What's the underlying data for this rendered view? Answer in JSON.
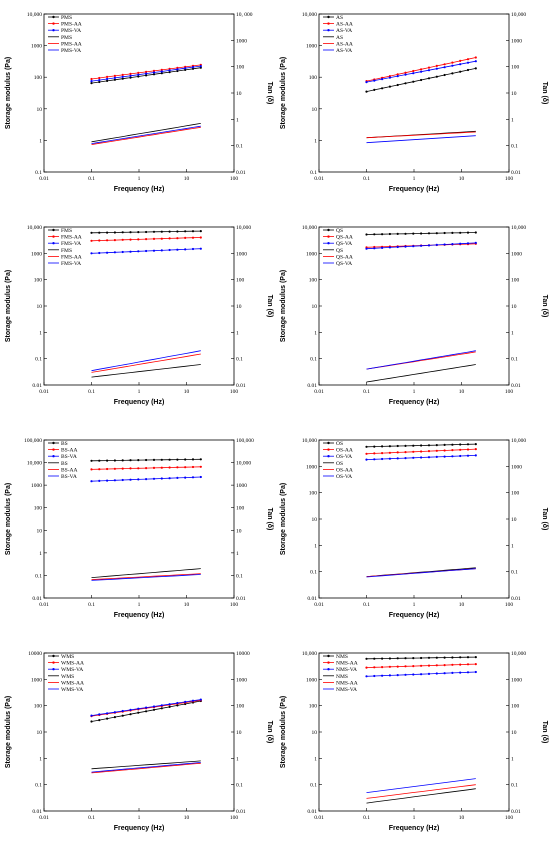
{
  "chart_data": [
    {
      "type": "line",
      "panel": "PMS",
      "xlabel": "Frequency (Hz)",
      "ylabel": "Storage modulus (Pa)",
      "y2label": "Tan (δ)",
      "xlim": [
        0.01,
        100
      ],
      "ylim": [
        0.1,
        10000
      ],
      "y2lim": [
        0.01,
        10000
      ],
      "log_scale": true,
      "legend": "top-left",
      "x_ticks": [
        "0.01",
        "0.1",
        "1",
        "10",
        "100"
      ],
      "y_ticks": [
        "0.1",
        "1",
        "10",
        "100",
        "1000",
        "10,000"
      ],
      "y2_ticks": [
        "0.01",
        "0.1",
        "1",
        "10",
        "100",
        "1000",
        "10, 000"
      ],
      "series": [
        {
          "name": "PMS",
          "axis": "left",
          "color": "#000000",
          "x": [
            0.1,
            20
          ],
          "values": [
            65,
            200
          ]
        },
        {
          "name": "PMS-AA",
          "axis": "left",
          "color": "#ff0000",
          "x": [
            0.1,
            20
          ],
          "values": [
            88,
            245
          ]
        },
        {
          "name": "PMS-VA",
          "axis": "left",
          "color": "#0000ff",
          "x": [
            0.1,
            20
          ],
          "values": [
            75,
            225
          ]
        },
        {
          "name": "PMS",
          "axis": "right",
          "color": "#000000",
          "x": [
            0.1,
            20
          ],
          "values": [
            0.14,
            0.7
          ]
        },
        {
          "name": "PMS-AA",
          "axis": "right",
          "color": "#ff0000",
          "x": [
            0.1,
            20
          ],
          "values": [
            0.11,
            0.5
          ]
        },
        {
          "name": "PMS-VA",
          "axis": "right",
          "color": "#0000ff",
          "x": [
            0.1,
            20
          ],
          "values": [
            0.12,
            0.55
          ]
        }
      ]
    },
    {
      "type": "line",
      "panel": "AS",
      "xlabel": "Frequency (Hz)",
      "ylabel": "Storage modulus (Pa)",
      "y2label": "Tan (δ)",
      "xlim": [
        0.01,
        100
      ],
      "ylim": [
        0.1,
        10000
      ],
      "y2lim": [
        0.01,
        10000
      ],
      "log_scale": true,
      "legend": "top-left",
      "x_ticks": [
        "0.01",
        "0.1",
        "1",
        "10",
        "100"
      ],
      "y_ticks": [
        "0.1",
        "1",
        "10",
        "100",
        "1000",
        "10,000"
      ],
      "y2_ticks": [
        "0.01",
        "0.1",
        "1",
        "10",
        "100",
        "1000",
        "10,000"
      ],
      "series": [
        {
          "name": "AS",
          "axis": "left",
          "color": "#000000",
          "x": [
            0.1,
            20
          ],
          "values": [
            35,
            190
          ]
        },
        {
          "name": "AS-AA",
          "axis": "left",
          "color": "#ff0000",
          "x": [
            0.1,
            20
          ],
          "values": [
            75,
            420
          ]
        },
        {
          "name": "AS-VA",
          "axis": "left",
          "color": "#0000ff",
          "x": [
            0.1,
            20
          ],
          "values": [
            70,
            320
          ]
        },
        {
          "name": "AS",
          "axis": "right",
          "color": "#000000",
          "x": [
            0.1,
            20
          ],
          "values": [
            0.2,
            0.35
          ]
        },
        {
          "name": "AS-AA",
          "axis": "right",
          "color": "#ff0000",
          "x": [
            0.1,
            20
          ],
          "values": [
            0.2,
            0.33
          ]
        },
        {
          "name": "AS-VA",
          "axis": "right",
          "color": "#0000ff",
          "x": [
            0.1,
            20
          ],
          "values": [
            0.13,
            0.24
          ]
        }
      ]
    },
    {
      "type": "line",
      "panel": "FMS",
      "xlabel": "Frequency (Hz)",
      "ylabel": "Storage modulus (Pa)",
      "y2label": "Tan (δ)",
      "xlim": [
        0.01,
        100
      ],
      "ylim": [
        0.01,
        10000
      ],
      "y2lim": [
        0.01,
        10000
      ],
      "log_scale": true,
      "legend": "top-left",
      "x_ticks": [
        "0.01",
        "0.1",
        "1",
        "10",
        "100"
      ],
      "y_ticks": [
        "0.01",
        "0.1",
        "1",
        "10",
        "100",
        "1000",
        "10,000"
      ],
      "y2_ticks": [
        "0.01",
        "0.1",
        "1",
        "10",
        "100",
        "1000",
        "10,000"
      ],
      "series": [
        {
          "name": "FMS",
          "axis": "left",
          "color": "#000000",
          "x": [
            0.1,
            20
          ],
          "values": [
            6000,
            7000
          ]
        },
        {
          "name": "FMS-AA",
          "axis": "left",
          "color": "#ff0000",
          "x": [
            0.1,
            20
          ],
          "values": [
            3000,
            4000
          ]
        },
        {
          "name": "FMS-VA",
          "axis": "left",
          "color": "#0000ff",
          "x": [
            0.1,
            20
          ],
          "values": [
            1000,
            1500
          ]
        },
        {
          "name": "FMS",
          "axis": "right",
          "color": "#000000",
          "x": [
            0.1,
            20
          ],
          "values": [
            0.02,
            0.06
          ]
        },
        {
          "name": "FMS-AA",
          "axis": "right",
          "color": "#ff0000",
          "x": [
            0.1,
            20
          ],
          "values": [
            0.03,
            0.15
          ]
        },
        {
          "name": "FMS-VA",
          "axis": "right",
          "color": "#0000ff",
          "x": [
            0.1,
            20
          ],
          "values": [
            0.035,
            0.2
          ]
        }
      ]
    },
    {
      "type": "line",
      "panel": "QS",
      "xlabel": "Frequency (Hz)",
      "ylabel": "Storage modulus (Pa)",
      "y2label": "Tan (δ)",
      "xlim": [
        0.01,
        100
      ],
      "ylim": [
        0.01,
        10000
      ],
      "y2lim": [
        0.01,
        10000
      ],
      "log_scale": true,
      "legend": "top-left",
      "x_ticks": [
        "0.01",
        "0.1",
        "1",
        "10",
        "100"
      ],
      "y_ticks": [
        "0.01",
        "0.1",
        "1",
        "10",
        "100",
        "1000",
        "10,000"
      ],
      "y2_ticks": [
        "0.01",
        "0.1",
        "1",
        "10",
        "100",
        "1000",
        "10,000"
      ],
      "series": [
        {
          "name": "QS",
          "axis": "left",
          "color": "#000000",
          "x": [
            0.1,
            20
          ],
          "values": [
            5200,
            6200
          ]
        },
        {
          "name": "QS-AA",
          "axis": "left",
          "color": "#ff0000",
          "x": [
            0.1,
            20
          ],
          "values": [
            1700,
            2300
          ]
        },
        {
          "name": "QS-VA",
          "axis": "left",
          "color": "#0000ff",
          "x": [
            0.1,
            20
          ],
          "values": [
            1500,
            2500
          ]
        },
        {
          "name": "QS",
          "axis": "right",
          "color": "#000000",
          "x": [
            0.1,
            20
          ],
          "values": [
            0.013,
            0.06
          ]
        },
        {
          "name": "QS-AA",
          "axis": "right",
          "color": "#ff0000",
          "x": [
            0.1,
            20
          ],
          "values": [
            0.04,
            0.18
          ]
        },
        {
          "name": "QS-VA",
          "axis": "right",
          "color": "#0000ff",
          "x": [
            0.1,
            20
          ],
          "values": [
            0.04,
            0.2
          ]
        }
      ]
    },
    {
      "type": "line",
      "panel": "BS",
      "xlabel": "Frequency (Hz)",
      "ylabel": "Storage modulus (Pa)",
      "y2label": "Tan (δ)",
      "xlim": [
        0.01,
        100
      ],
      "ylim": [
        0.01,
        100000
      ],
      "y2lim": [
        0.01,
        100000
      ],
      "log_scale": true,
      "legend": "top-left",
      "x_ticks": [
        "0.01",
        "0.1",
        "1",
        "10",
        "100"
      ],
      "y_ticks": [
        "0.01",
        "0.1",
        "1",
        "10",
        "100",
        "1000",
        "10,000",
        "100,000"
      ],
      "y2_ticks": [
        "0.01",
        "0.1",
        "1",
        "10",
        "100",
        "1000",
        "10,000",
        "100,000"
      ],
      "series": [
        {
          "name": "BS",
          "axis": "left",
          "color": "#000000",
          "x": [
            0.1,
            20
          ],
          "values": [
            12000,
            14000
          ]
        },
        {
          "name": "BS-AA",
          "axis": "left",
          "color": "#ff0000",
          "x": [
            0.1,
            20
          ],
          "values": [
            5000,
            6500
          ]
        },
        {
          "name": "BS-VA",
          "axis": "left",
          "color": "#0000ff",
          "x": [
            0.1,
            20
          ],
          "values": [
            1500,
            2300
          ]
        },
        {
          "name": "BS",
          "axis": "right",
          "color": "#000000",
          "x": [
            0.1,
            20
          ],
          "values": [
            0.08,
            0.2
          ]
        },
        {
          "name": "BS-AA",
          "axis": "right",
          "color": "#ff0000",
          "x": [
            0.1,
            20
          ],
          "values": [
            0.065,
            0.12
          ]
        },
        {
          "name": "BS-VA",
          "axis": "right",
          "color": "#0000ff",
          "x": [
            0.1,
            20
          ],
          "values": [
            0.06,
            0.11
          ]
        }
      ]
    },
    {
      "type": "line",
      "panel": "OS",
      "xlabel": "Frequency (Hz)",
      "ylabel": "Storage modulus (Pa)",
      "y2label": "Tan (δ)",
      "xlim": [
        0.01,
        100
      ],
      "ylim": [
        0.01,
        10000
      ],
      "y2lim": [
        0.01,
        10000
      ],
      "log_scale": true,
      "legend": "top-left",
      "x_ticks": [
        "0.01",
        "0.1",
        "1",
        "10",
        "100"
      ],
      "y_ticks": [
        "0.01",
        "0.1",
        "1",
        "10",
        "100",
        "1000",
        "10,000"
      ],
      "y2_ticks": [
        "0.01",
        "0.1",
        "1",
        "10",
        "100",
        "1000",
        "10,000"
      ],
      "series": [
        {
          "name": "OS",
          "axis": "left",
          "color": "#000000",
          "x": [
            0.1,
            20
          ],
          "values": [
            5500,
            7000
          ]
        },
        {
          "name": "OS-AA",
          "axis": "left",
          "color": "#ff0000",
          "x": [
            0.1,
            20
          ],
          "values": [
            3000,
            4500
          ]
        },
        {
          "name": "OS-VA",
          "axis": "left",
          "color": "#0000ff",
          "x": [
            0.1,
            20
          ],
          "values": [
            1800,
            2600
          ]
        },
        {
          "name": "OS",
          "axis": "right",
          "color": "#000000",
          "x": [
            0.1,
            20
          ],
          "values": [
            0.065,
            0.14
          ]
        },
        {
          "name": "OS-AA",
          "axis": "right",
          "color": "#ff0000",
          "x": [
            0.1,
            20
          ],
          "values": [
            0.065,
            0.13
          ]
        },
        {
          "name": "OS-VA",
          "axis": "right",
          "color": "#0000ff",
          "x": [
            0.1,
            20
          ],
          "values": [
            0.063,
            0.13
          ]
        }
      ]
    },
    {
      "type": "line",
      "panel": "WMS",
      "xlabel": "Frequency (Hz)",
      "ylabel": "Storage modulus (Pa)",
      "y2label": "Tan (δ)",
      "xlim": [
        0.01,
        100
      ],
      "ylim": [
        0.01,
        10000
      ],
      "y2lim": [
        0.01,
        10000
      ],
      "log_scale": true,
      "legend": "top-left",
      "x_ticks": [
        "0.01",
        "0.1",
        "1",
        "10",
        "100"
      ],
      "y_ticks": [
        "0.01",
        "0.1",
        "1",
        "10",
        "100",
        "1000",
        "10000"
      ],
      "y2_ticks": [
        "0.01",
        "0.1",
        "1",
        "10",
        "100",
        "1000",
        "10000"
      ],
      "series": [
        {
          "name": "WMS",
          "axis": "left",
          "color": "#000000",
          "x": [
            0.1,
            20
          ],
          "values": [
            25,
            150
          ]
        },
        {
          "name": "WMS-AA",
          "axis": "left",
          "color": "#ff0000",
          "x": [
            0.1,
            20
          ],
          "values": [
            40,
            160
          ]
        },
        {
          "name": "WMS-VA",
          "axis": "left",
          "color": "#0000ff",
          "x": [
            0.1,
            20
          ],
          "values": [
            42,
            170
          ]
        },
        {
          "name": "WMS",
          "axis": "right",
          "color": "#000000",
          "x": [
            0.1,
            20
          ],
          "values": [
            0.4,
            0.8
          ]
        },
        {
          "name": "WMS-AA",
          "axis": "right",
          "color": "#ff0000",
          "x": [
            0.1,
            20
          ],
          "values": [
            0.28,
            0.65
          ]
        },
        {
          "name": "WMS-VA",
          "axis": "right",
          "color": "#0000ff",
          "x": [
            0.1,
            20
          ],
          "values": [
            0.3,
            0.7
          ]
        }
      ]
    },
    {
      "type": "line",
      "panel": "NMS",
      "xlabel": "Frequency (Hz)",
      "ylabel": "Storage modulus (Pa)",
      "y2label": "Tan (δ)",
      "xlim": [
        0.01,
        100
      ],
      "ylim": [
        0.01,
        10000
      ],
      "y2lim": [
        0.01,
        10000
      ],
      "log_scale": true,
      "legend": "top-left",
      "x_ticks": [
        "0.01",
        "0.1",
        "1",
        "10",
        "100"
      ],
      "y_ticks": [
        "0.01",
        "0.1",
        "1",
        "10",
        "100",
        "1000",
        "10,000"
      ],
      "y2_ticks": [
        "0.01",
        "0.1",
        "1",
        "10",
        "100",
        "1000",
        "10,000"
      ],
      "series": [
        {
          "name": "NMS",
          "axis": "left",
          "color": "#000000",
          "x": [
            0.1,
            20
          ],
          "values": [
            6000,
            7000
          ]
        },
        {
          "name": "NMS-AA",
          "axis": "left",
          "color": "#ff0000",
          "x": [
            0.1,
            20
          ],
          "values": [
            2800,
            3800
          ]
        },
        {
          "name": "NMS-VA",
          "axis": "left",
          "color": "#0000ff",
          "x": [
            0.1,
            20
          ],
          "values": [
            1300,
            1900
          ]
        },
        {
          "name": "NMS",
          "axis": "right",
          "color": "#000000",
          "x": [
            0.1,
            20
          ],
          "values": [
            0.02,
            0.07
          ]
        },
        {
          "name": "NMS-AA",
          "axis": "right",
          "color": "#ff0000",
          "x": [
            0.1,
            20
          ],
          "values": [
            0.03,
            0.1
          ]
        },
        {
          "name": "NMS-VA",
          "axis": "right",
          "color": "#0000ff",
          "x": [
            0.1,
            20
          ],
          "values": [
            0.05,
            0.17
          ]
        }
      ]
    }
  ]
}
